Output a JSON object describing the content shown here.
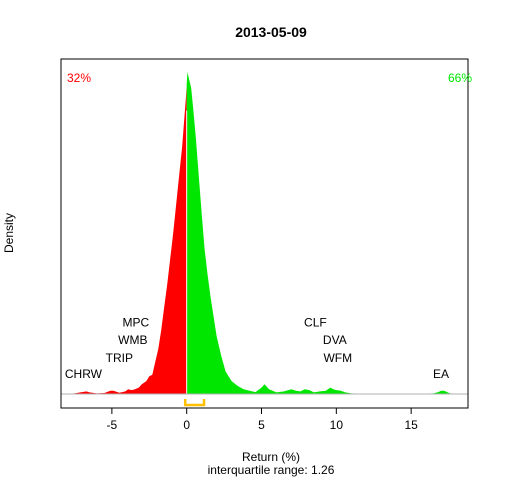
{
  "chart_data": {
    "type": "area",
    "title": "2013-05-09",
    "xlabel": "Return (%)",
    "ylabel": "Density",
    "subtitle": "interquartile range: 1.26",
    "xlim": [
      -8.4,
      18.8
    ],
    "ylim": [
      0,
      1.0
    ],
    "x_ticks": [
      -5,
      0,
      5,
      10,
      15
    ],
    "x_tick_labels": [
      "-5",
      "0",
      "5",
      "10",
      "15"
    ],
    "negative_share_label": "32%",
    "positive_share_label": "66%",
    "negative_color": "#ff0000",
    "positive_color": "#00e600",
    "iqr_color": "#ffc000",
    "iqr": [
      -0.1,
      1.16
    ],
    "density": {
      "x": [
        -8.2,
        -7.5,
        -7.0,
        -6.7,
        -6.5,
        -6.0,
        -5.5,
        -5.1,
        -4.9,
        -4.5,
        -4.1,
        -3.9,
        -3.7,
        -3.5,
        -3.2,
        -3.0,
        -2.7,
        -2.5,
        -2.3,
        -2.1,
        -1.9,
        -1.7,
        -1.5,
        -1.3,
        -1.1,
        -0.9,
        -0.7,
        -0.5,
        -0.3,
        -0.15,
        -0.05,
        0.0,
        0.05,
        0.15,
        0.3,
        0.45,
        0.6,
        0.8,
        1.0,
        1.2,
        1.4,
        1.6,
        1.8,
        2.0,
        2.3,
        2.6,
        3.0,
        3.4,
        3.8,
        4.2,
        4.6,
        5.0,
        5.2,
        5.5,
        6.0,
        6.5,
        6.8,
        7.0,
        7.3,
        7.6,
        7.9,
        8.2,
        8.5,
        8.9,
        9.3,
        9.6,
        9.8,
        10.0,
        10.3,
        10.6,
        11.0,
        12.0,
        13.5,
        15.0,
        16.5,
        16.8,
        17.0,
        17.2,
        17.4,
        17.6,
        18.2
      ],
      "y": [
        0.0,
        0.002,
        0.006,
        0.008,
        0.005,
        0.002,
        0.003,
        0.01,
        0.01,
        0.004,
        0.008,
        0.015,
        0.012,
        0.014,
        0.02,
        0.03,
        0.04,
        0.055,
        0.06,
        0.1,
        0.14,
        0.2,
        0.27,
        0.34,
        0.42,
        0.5,
        0.59,
        0.68,
        0.77,
        0.86,
        0.92,
        0.96,
        1.0,
        0.98,
        0.95,
        0.88,
        0.8,
        0.68,
        0.56,
        0.45,
        0.37,
        0.3,
        0.24,
        0.18,
        0.12,
        0.07,
        0.04,
        0.025,
        0.015,
        0.01,
        0.006,
        0.02,
        0.03,
        0.015,
        0.005,
        0.008,
        0.012,
        0.015,
        0.01,
        0.008,
        0.015,
        0.012,
        0.005,
        0.008,
        0.01,
        0.02,
        0.015,
        0.012,
        0.01,
        0.005,
        0.002,
        0.001,
        0.001,
        0.0,
        0.002,
        0.006,
        0.01,
        0.01,
        0.006,
        0.002,
        0.0
      ]
    },
    "annotations": [
      {
        "label": "CHRW",
        "x": -6.9,
        "y": 0.05
      },
      {
        "label": "TRIP",
        "x": -4.5,
        "y": 0.1
      },
      {
        "label": "WMB",
        "x": -3.6,
        "y": 0.155
      },
      {
        "label": "MPC",
        "x": -3.4,
        "y": 0.21
      },
      {
        "label": "CLF",
        "x": 8.6,
        "y": 0.21
      },
      {
        "label": "DVA",
        "x": 9.9,
        "y": 0.155
      },
      {
        "label": "WFM",
        "x": 10.1,
        "y": 0.1
      },
      {
        "label": "EA",
        "x": 17.0,
        "y": 0.05
      }
    ]
  }
}
